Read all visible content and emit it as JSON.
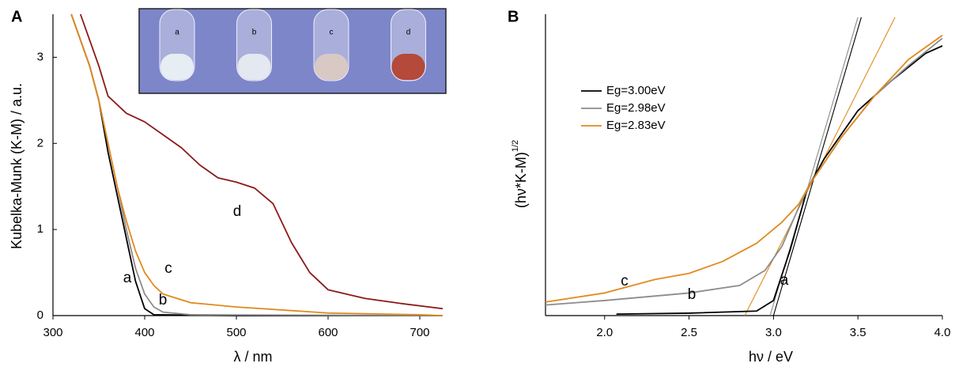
{
  "chart_data": [
    {
      "type": "line",
      "panel": "A",
      "xlabel": "λ / nm",
      "ylabel": "Kubelka-Munk (K-M) / a.u.",
      "xlim": [
        300,
        725
      ],
      "ylim": [
        0,
        3.5
      ],
      "xticks": [
        300,
        400,
        500,
        600,
        700
      ],
      "yticks": [
        0,
        1,
        2,
        3
      ],
      "annotations": [
        "a",
        "b",
        "c",
        "d"
      ],
      "inset_labels": [
        "a",
        "b",
        "c",
        "d"
      ],
      "series": [
        {
          "color": "#000000",
          "x": [
            320,
            340,
            350,
            360,
            370,
            380,
            390,
            400,
            410,
            500,
            725
          ],
          "values": [
            3.5,
            2.9,
            2.5,
            1.9,
            1.4,
            0.9,
            0.4,
            0.08,
            0.01,
            0,
            0
          ]
        },
        {
          "color": "#8c8c8c",
          "x": [
            320,
            340,
            350,
            360,
            370,
            380,
            390,
            400,
            410,
            420,
            450,
            725
          ],
          "values": [
            3.5,
            2.9,
            2.5,
            2.0,
            1.5,
            1.0,
            0.55,
            0.25,
            0.1,
            0.04,
            0.01,
            0
          ]
        },
        {
          "color": "#e08a1e",
          "x": [
            320,
            340,
            350,
            360,
            370,
            380,
            390,
            400,
            410,
            420,
            450,
            500,
            600,
            700,
            725
          ],
          "values": [
            3.5,
            2.9,
            2.5,
            2.0,
            1.5,
            1.1,
            0.75,
            0.5,
            0.35,
            0.25,
            0.15,
            0.1,
            0.03,
            0.01,
            0
          ]
        },
        {
          "color": "#8b1a1a",
          "x": [
            330,
            340,
            350,
            360,
            380,
            400,
            420,
            440,
            460,
            480,
            500,
            520,
            540,
            560,
            580,
            600,
            640,
            680,
            725
          ],
          "values": [
            3.5,
            3.2,
            2.9,
            2.55,
            2.35,
            2.25,
            2.1,
            1.95,
            1.75,
            1.6,
            1.55,
            1.48,
            1.3,
            0.85,
            0.5,
            0.3,
            0.2,
            0.14,
            0.08
          ]
        }
      ]
    },
    {
      "type": "line",
      "panel": "B",
      "xlabel": "hν  / eV",
      "ylabel": "(hν*K-M)",
      "ylabel_superscript": "1/2",
      "xlim": [
        1.65,
        4.0
      ],
      "ylim": [
        0,
        10
      ],
      "xticks": [
        {
          "value": 2,
          "label": "2.0"
        },
        2.5,
        {
          "value": 3,
          "label": "3.0"
        },
        3.5,
        {
          "value": 4,
          "label": "4.0"
        }
      ],
      "annotations": [
        "a",
        "b",
        "c"
      ],
      "series": [
        {
          "name": "Eg=3.00eV",
          "color": "#000000",
          "x": [
            2.07,
            2.5,
            2.9,
            3.0,
            3.1,
            3.2,
            3.3,
            3.5,
            3.7,
            3.9,
            4.0
          ],
          "values": [
            0.05,
            0.08,
            0.15,
            0.5,
            2.2,
            4.2,
            5.2,
            6.8,
            7.8,
            8.7,
            8.95
          ]
        },
        {
          "name": "Eg=2.98eV",
          "color": "#8c8c8c",
          "x": [
            1.65,
            2.0,
            2.5,
            2.8,
            2.95,
            3.05,
            3.15,
            3.22,
            3.4,
            3.6,
            3.8,
            4.0
          ],
          "values": [
            0.35,
            0.5,
            0.75,
            1.0,
            1.5,
            2.3,
            3.6,
            4.4,
            5.9,
            7.3,
            8.3,
            9.2
          ]
        },
        {
          "name": "Eg=2.83eV",
          "color": "#e08a1e",
          "x": [
            1.65,
            2.0,
            2.3,
            2.5,
            2.7,
            2.9,
            3.05,
            3.15,
            3.22,
            3.4,
            3.6,
            3.8,
            4.0
          ],
          "values": [
            0.45,
            0.75,
            1.2,
            1.4,
            1.8,
            2.4,
            3.1,
            3.7,
            4.4,
            5.9,
            7.3,
            8.5,
            9.3
          ]
        }
      ],
      "tangents": [
        {
          "color": "#000000",
          "x": [
            3.0,
            3.52
          ],
          "y": [
            0,
            9.9
          ]
        },
        {
          "color": "#8c8c8c",
          "x": [
            2.98,
            3.5
          ],
          "y": [
            0,
            9.9
          ]
        },
        {
          "color": "#e08a1e",
          "x": [
            2.83,
            3.72
          ],
          "y": [
            0,
            9.9
          ]
        }
      ]
    }
  ]
}
